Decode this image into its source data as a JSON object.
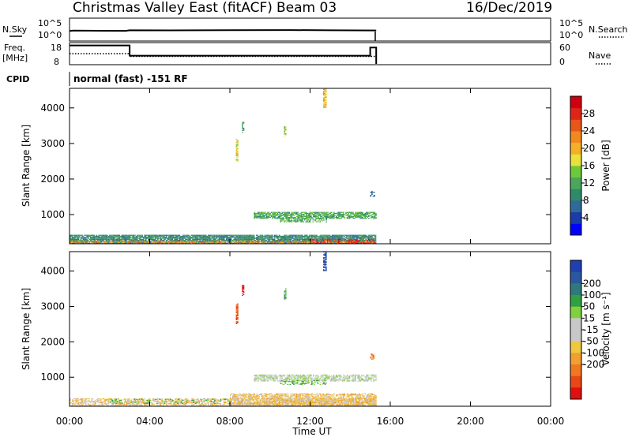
{
  "header": {
    "station": "Christmas Valley East (fitACF)",
    "beam": "Beam 03",
    "date": "16/Dec/2019"
  },
  "panels": {
    "nsky": {
      "label": "N.Sky",
      "ticks": [
        "10^5",
        "10^0"
      ],
      "right_ticks": [
        "10^5",
        "10^0"
      ],
      "right_label": "N.Search"
    },
    "freq": {
      "label_line1": "Freq.",
      "label_line2": "[MHz]",
      "ticks": [
        "18",
        "8"
      ],
      "right_ticks": [
        "60",
        "0"
      ],
      "right_label": "Nave"
    },
    "cpid": {
      "label": "CPID",
      "value": "normal (fast) -151 RF"
    }
  },
  "colorbars": {
    "power": {
      "label": "Power [dB]",
      "colors": [
        "#0000ff",
        "#1a3ca8",
        "#2e6a9a",
        "#2f8a6a",
        "#4aa65a",
        "#6ec83c",
        "#e8e23a",
        "#f5b02a",
        "#f08a20",
        "#e8561a",
        "#e02418",
        "#d00010"
      ],
      "ticks": [
        "4",
        "8",
        "12",
        "16",
        "20",
        "24",
        "28"
      ]
    },
    "velocity": {
      "label": "Velocity [m s⁻¹]",
      "colors": [
        "#2040b0",
        "#2a58a0",
        "#2e7a7a",
        "#30a040",
        "#80d040",
        "#c8c8c8",
        "#c8c8c8",
        "#f0c840",
        "#f0a030",
        "#f07820",
        "#e84818",
        "#e01010"
      ],
      "ticks": [
        "200",
        "100",
        "50",
        "15",
        "-15",
        "-50",
        "-100",
        "-200"
      ]
    }
  },
  "axes": {
    "ylabel": "Slant Range [km]",
    "xlabel": "Time UT",
    "yticks": [
      "1000",
      "2000",
      "3000",
      "4000"
    ],
    "xticks": [
      "00:00",
      "04:00",
      "08:00",
      "12:00",
      "16:00",
      "20:00",
      "00:00"
    ]
  },
  "chart_data": [
    {
      "type": "line",
      "title": "N.Sky",
      "x_hours": [
        0,
        0.2,
        2.8,
        3.0,
        5.0,
        8.0,
        11.0,
        13.0,
        15.3
      ],
      "values": [
        150,
        180,
        160,
        220,
        210,
        230,
        240,
        220,
        200
      ],
      "scale": "log",
      "ylim": [
        1,
        100000
      ]
    },
    {
      "type": "line",
      "title": "Freq.",
      "series": [
        {
          "name": "Freq.",
          "x_hours": [
            0,
            3.0,
            3.0,
            15.0,
            15.0,
            15.3
          ],
          "values": [
            17,
            17,
            12,
            12,
            16,
            16
          ]
        },
        {
          "name": "Nave",
          "x_hours": [
            0,
            3.0,
            3.0,
            15.3
          ],
          "values": [
            30,
            30,
            22,
            22
          ]
        }
      ],
      "ylim": [
        8,
        18
      ],
      "y2lim": [
        0,
        60
      ]
    },
    {
      "type": "heatmap",
      "title": "Power [dB]",
      "xlim_hours": [
        0,
        24
      ],
      "ylim_km": [
        180,
        4550
      ],
      "echoes": [
        {
          "t0": 0,
          "t1": 15.3,
          "r0": 180,
          "r1": 420,
          "level": 3,
          "density": 0.9
        },
        {
          "t0": 0,
          "t1": 15.3,
          "r0": 180,
          "r1": 260,
          "level": 8,
          "density": 0.6
        },
        {
          "t0": 12,
          "t1": 15.3,
          "r0": 180,
          "r1": 300,
          "level": 10,
          "density": 0.4
        },
        {
          "t0": 9.2,
          "t1": 15.3,
          "r0": 880,
          "r1": 1050,
          "level": 4,
          "density": 0.75
        },
        {
          "t0": 10.5,
          "t1": 12.8,
          "r0": 780,
          "r1": 900,
          "level": 4,
          "density": 0.6
        },
        {
          "t0": 8.3,
          "t1": 8.4,
          "r0": 2500,
          "r1": 3100,
          "level": 6,
          "density": 0.9
        },
        {
          "t0": 8.6,
          "t1": 8.7,
          "r0": 3300,
          "r1": 3600,
          "level": 4,
          "density": 0.8
        },
        {
          "t0": 12.65,
          "t1": 12.8,
          "r0": 4000,
          "r1": 4550,
          "level": 7,
          "density": 0.8
        },
        {
          "t0": 10.7,
          "t1": 10.8,
          "r0": 3200,
          "r1": 3500,
          "level": 5,
          "density": 0.8
        },
        {
          "t0": 15.0,
          "t1": 15.2,
          "r0": 1500,
          "r1": 1650,
          "level": 2,
          "density": 0.5
        }
      ]
    },
    {
      "type": "heatmap",
      "title": "Velocity [m s⁻¹]",
      "xlim_hours": [
        0,
        24
      ],
      "ylim_km": [
        180,
        4550
      ],
      "echoes": [
        {
          "t0": 0,
          "t1": 15.3,
          "r0": 180,
          "r1": 380,
          "level": 7,
          "density": 0.55
        },
        {
          "t0": 8,
          "t1": 15.3,
          "r0": 180,
          "r1": 520,
          "level": 7,
          "density": 0.7
        },
        {
          "t0": 2,
          "t1": 8,
          "r0": 250,
          "r1": 380,
          "level": 4,
          "density": 0.35
        },
        {
          "t0": 9.2,
          "t1": 15.3,
          "r0": 880,
          "r1": 1050,
          "level": 5,
          "density": 0.65
        },
        {
          "t0": 10.5,
          "t1": 12.8,
          "r0": 780,
          "r1": 900,
          "level": 4,
          "density": 0.55
        },
        {
          "t0": 8.3,
          "t1": 8.4,
          "r0": 2500,
          "r1": 3100,
          "level": 10,
          "density": 0.8
        },
        {
          "t0": 8.6,
          "t1": 8.7,
          "r0": 3300,
          "r1": 3600,
          "level": 11,
          "density": 0.8
        },
        {
          "t0": 12.65,
          "t1": 12.8,
          "r0": 4000,
          "r1": 4550,
          "level": 0,
          "density": 0.8
        },
        {
          "t0": 10.7,
          "t1": 10.8,
          "r0": 3200,
          "r1": 3500,
          "level": 3,
          "density": 0.8
        },
        {
          "t0": 15.0,
          "t1": 15.2,
          "r0": 1500,
          "r1": 1650,
          "level": 9,
          "density": 0.5
        }
      ]
    }
  ]
}
